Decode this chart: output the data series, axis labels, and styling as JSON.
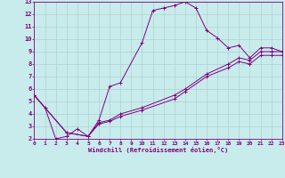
{
  "xlabel": "Windchill (Refroidissement éolien,°C)",
  "bg_color": "#c8ecec",
  "line_color": "#800080",
  "grid_color": "#b0d0d0",
  "xlim": [
    0,
    23
  ],
  "ylim": [
    2,
    13
  ],
  "xticks": [
    0,
    1,
    2,
    3,
    4,
    5,
    6,
    7,
    8,
    9,
    10,
    11,
    12,
    13,
    14,
    15,
    16,
    17,
    18,
    19,
    20,
    21,
    22,
    23
  ],
  "yticks": [
    2,
    3,
    4,
    5,
    6,
    7,
    8,
    9,
    10,
    11,
    12,
    13
  ],
  "series": [
    {
      "x": [
        0,
        1,
        2,
        3,
        4,
        5,
        6,
        7,
        8,
        10,
        11,
        12,
        13,
        14,
        15,
        16,
        17,
        18,
        19,
        20,
        21,
        22,
        23
      ],
      "y": [
        5.5,
        4.5,
        2.0,
        2.2,
        2.8,
        2.2,
        3.5,
        6.2,
        6.5,
        9.7,
        12.3,
        12.5,
        12.7,
        13.0,
        12.5,
        10.7,
        10.1,
        9.3,
        9.5,
        8.5,
        9.3,
        9.3,
        9.0
      ]
    },
    {
      "x": [
        0,
        3,
        5,
        6,
        7,
        8,
        10,
        13,
        14,
        16,
        18,
        19,
        20,
        21,
        22,
        23
      ],
      "y": [
        5.5,
        2.5,
        2.2,
        3.3,
        3.5,
        4.0,
        4.5,
        5.5,
        6.0,
        7.2,
        8.0,
        8.5,
        8.3,
        9.0,
        9.0,
        9.0
      ]
    },
    {
      "x": [
        0,
        3,
        5,
        6,
        7,
        8,
        10,
        13,
        14,
        16,
        18,
        19,
        20,
        21,
        22,
        23
      ],
      "y": [
        5.5,
        2.5,
        2.2,
        3.2,
        3.4,
        3.8,
        4.3,
        5.2,
        5.8,
        7.0,
        7.7,
        8.2,
        8.0,
        8.7,
        8.7,
        8.7
      ]
    }
  ]
}
